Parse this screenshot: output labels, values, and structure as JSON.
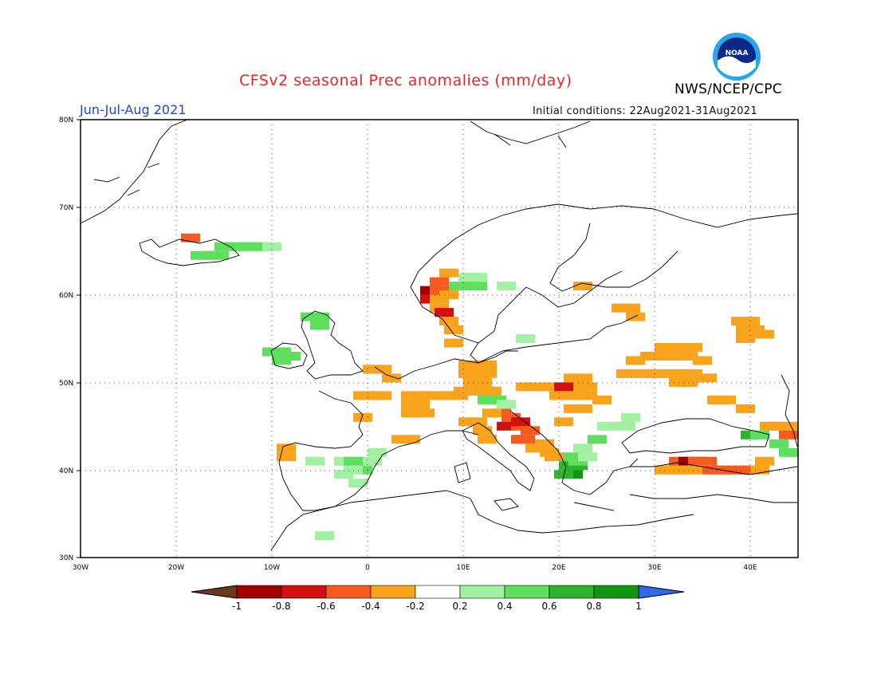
{
  "header": {
    "title": "CFSv2 seasonal Prec anomalies (mm/day)",
    "agency": "NWS/NCEP/CPC",
    "season": "Jun-Jul-Aug 2021",
    "initial_conditions": "Initial conditions: 22Aug2021-31Aug2021",
    "logo_text": "NOAA"
  },
  "map": {
    "lon_range": [
      -30,
      45
    ],
    "lat_range": [
      30,
      80
    ],
    "grid": "dotted",
    "lat_ticks": [
      "30N",
      "40N",
      "50N",
      "60N",
      "70N",
      "80N"
    ],
    "lon_ticks": [
      "30W",
      "20W",
      "10W",
      "0",
      "10E",
      "20E",
      "30E",
      "40E"
    ]
  },
  "colorbar": {
    "colors": [
      "#6b3a1e",
      "#a30000",
      "#d21010",
      "#f55a1e",
      "#f9a21c",
      "#ffffff",
      "#a2f0a2",
      "#5ee05e",
      "#2cb52c",
      "#129612",
      "#2f6ae8"
    ],
    "labels": [
      "-1",
      "-0.8",
      "-0.6",
      "-0.4",
      "-0.2",
      "0.2",
      "0.4",
      "0.6",
      "0.8",
      "1"
    ]
  },
  "anomaly_cells": [
    [
      1,
      -18.5,
      66.5,
      -0.4
    ],
    [
      0,
      -17.5,
      64.5,
      0.4
    ],
    [
      0,
      -16.5,
      64.5,
      0.4
    ],
    [
      0,
      -15.5,
      64.5,
      0.4
    ],
    [
      0,
      -15,
      65.5,
      0.4
    ],
    [
      0,
      -14,
      65.5,
      0.5
    ],
    [
      0,
      -13,
      65.5,
      0.5
    ],
    [
      0,
      -12,
      65.5,
      0.4
    ],
    [
      0,
      -11,
      65.5,
      0.4
    ],
    [
      0,
      -10,
      65.5,
      0.3
    ],
    [
      0,
      -10,
      53.5,
      0.4
    ],
    [
      0,
      -9,
      53.5,
      0.5
    ],
    [
      0,
      -8,
      53,
      0.4
    ],
    [
      0,
      -9,
      52.5,
      0.4
    ],
    [
      0,
      -6,
      57.5,
      0.4
    ],
    [
      0,
      -5,
      57.5,
      0.5
    ],
    [
      0,
      -5,
      56.5,
      0.4
    ],
    [
      2,
      6.5,
      60.5,
      -0.8
    ],
    [
      2,
      6.5,
      59.5,
      -0.7
    ],
    [
      1,
      7.5,
      61.5,
      -0.4
    ],
    [
      1,
      7.5,
      60.5,
      -0.4
    ],
    [
      1,
      7.5,
      59.5,
      -0.3
    ],
    [
      1,
      8.5,
      62.5,
      -0.3
    ],
    [
      1,
      8.5,
      60,
      -0.3
    ],
    [
      1,
      7.5,
      58.5,
      -0.3
    ],
    [
      2,
      8,
      58,
      -0.6
    ],
    [
      1,
      8.5,
      57,
      -0.3
    ],
    [
      1,
      9,
      56,
      -0.3
    ],
    [
      1,
      9,
      54.5,
      -0.3
    ],
    [
      0,
      9.5,
      61,
      0.4
    ],
    [
      0,
      10.5,
      61,
      0.4
    ],
    [
      0,
      11.5,
      61,
      0.4
    ],
    [
      0,
      10.5,
      62,
      0.3
    ],
    [
      0,
      11.5,
      62,
      0.3
    ],
    [
      0,
      14.5,
      61,
      0.3
    ],
    [
      0,
      16.5,
      55,
      0.3
    ],
    [
      1,
      22.5,
      61,
      -0.3
    ],
    [
      1,
      26.5,
      58.5,
      -0.3
    ],
    [
      1,
      27.5,
      58.5,
      -0.3
    ],
    [
      1,
      28,
      57.5,
      -0.3
    ],
    [
      1,
      10.5,
      52,
      -0.3
    ],
    [
      1,
      11.5,
      52,
      -0.3
    ],
    [
      1,
      12.5,
      52,
      -0.3
    ],
    [
      1,
      10.5,
      51,
      -0.3
    ],
    [
      1,
      11.5,
      51,
      -0.3
    ],
    [
      1,
      12.5,
      51,
      -0.3
    ],
    [
      1,
      11,
      50,
      -0.3
    ],
    [
      1,
      12,
      50,
      -0.3
    ],
    [
      1,
      10,
      49,
      -0.3
    ],
    [
      1,
      11,
      49,
      -0.3
    ],
    [
      1,
      12,
      49,
      -0.3
    ],
    [
      1,
      13,
      49,
      -0.3
    ],
    [
      1,
      0.5,
      51.5,
      -0.3
    ],
    [
      1,
      1.5,
      51.5,
      -0.3
    ],
    [
      1,
      2.5,
      50.5,
      -0.3
    ],
    [
      1,
      -0.5,
      48.5,
      -0.3
    ],
    [
      1,
      0.5,
      48.5,
      -0.3
    ],
    [
      1,
      1.5,
      48.5,
      -0.3
    ],
    [
      1,
      4.5,
      48.5,
      -0.3
    ],
    [
      1,
      5.5,
      48.5,
      -0.3
    ],
    [
      1,
      6.5,
      48.5,
      -0.3
    ],
    [
      1,
      4.5,
      47.5,
      -0.3
    ],
    [
      1,
      5.5,
      47.5,
      -0.3
    ],
    [
      1,
      4.5,
      46.5,
      -0.3
    ],
    [
      1,
      6,
      46.5,
      -0.3
    ],
    [
      1,
      8.5,
      48.5,
      -0.3
    ],
    [
      1,
      9.5,
      48.5,
      -0.3
    ],
    [
      1,
      -0.5,
      46,
      -0.3
    ],
    [
      1,
      3.5,
      43.5,
      -0.3
    ],
    [
      1,
      4.5,
      43.5,
      -0.3
    ],
    [
      1,
      10.5,
      45.5,
      -0.3
    ],
    [
      1,
      11.5,
      45.5,
      -0.3
    ],
    [
      1,
      12,
      44.5,
      -0.3
    ],
    [
      1,
      12.5,
      43.5,
      -0.3
    ],
    [
      2,
      14,
      46.5,
      -0.5
    ],
    [
      2,
      15,
      46,
      -0.5
    ],
    [
      2,
      14.5,
      45,
      -0.6
    ],
    [
      2,
      16,
      45,
      -0.5
    ],
    [
      3,
      16,
      45.5,
      -0.7
    ],
    [
      1,
      13,
      46.5,
      -0.3
    ],
    [
      1,
      17,
      44.5,
      -0.4
    ],
    [
      1,
      16,
      43.5,
      -0.5
    ],
    [
      2,
      16.5,
      43.5,
      -0.5
    ],
    [
      1,
      18.5,
      43,
      -0.3
    ],
    [
      1,
      17.5,
      42.5,
      -0.3
    ],
    [
      0,
      12.5,
      48,
      0.4
    ],
    [
      0,
      13.5,
      48,
      0.4
    ],
    [
      0,
      14.5,
      47.5,
      0.3
    ],
    [
      1,
      16.5,
      49.5,
      -0.3
    ],
    [
      1,
      17.5,
      49.5,
      -0.3
    ],
    [
      1,
      19,
      49.5,
      -0.3
    ],
    [
      1,
      21.5,
      50.5,
      -0.3
    ],
    [
      1,
      22.5,
      50.5,
      -0.3
    ],
    [
      1,
      21,
      49.5,
      -0.3
    ],
    [
      1,
      22,
      49.5,
      -0.3
    ],
    [
      1,
      23,
      49.5,
      -0.3
    ],
    [
      2,
      20.5,
      49.5,
      -0.6
    ],
    [
      1,
      20,
      48.5,
      -0.3
    ],
    [
      1,
      21,
      48.5,
      -0.3
    ],
    [
      1,
      23,
      48.5,
      -0.3
    ],
    [
      1,
      24.5,
      48,
      -0.3
    ],
    [
      1,
      22.5,
      47,
      -0.3
    ],
    [
      1,
      21.5,
      47,
      -0.3
    ],
    [
      1,
      20.5,
      45.5,
      -0.3
    ],
    [
      1,
      28,
      52.5,
      -0.3
    ],
    [
      1,
      29.5,
      53,
      -0.3
    ],
    [
      1,
      30.5,
      53,
      -0.3
    ],
    [
      1,
      31.5,
      53,
      -0.3
    ],
    [
      1,
      32.5,
      53,
      -0.3
    ],
    [
      1,
      33.5,
      53,
      -0.3
    ],
    [
      1,
      31,
      54,
      -0.3
    ],
    [
      1,
      32,
      54,
      -0.3
    ],
    [
      1,
      33,
      54,
      -0.3
    ],
    [
      1,
      34,
      54,
      -0.3
    ],
    [
      1,
      35,
      52.5,
      -0.3
    ],
    [
      1,
      27,
      51,
      -0.3
    ],
    [
      1,
      28,
      51,
      -0.3
    ],
    [
      1,
      29,
      51,
      -0.3
    ],
    [
      1,
      30,
      51,
      -0.3
    ],
    [
      1,
      31,
      51,
      -0.3
    ],
    [
      1,
      32,
      51,
      -0.3
    ],
    [
      1,
      33,
      51,
      -0.3
    ],
    [
      1,
      34,
      51,
      -0.3
    ],
    [
      1,
      32.5,
      50,
      -0.3
    ],
    [
      1,
      33.5,
      50,
      -0.3
    ],
    [
      1,
      35.5,
      50.5,
      -0.3
    ],
    [
      1,
      39,
      57,
      -0.3
    ],
    [
      1,
      40,
      57,
      -0.3
    ],
    [
      1,
      39.5,
      56,
      -0.3
    ],
    [
      1,
      40.5,
      56,
      -0.3
    ],
    [
      1,
      41.5,
      55.5,
      -0.3
    ],
    [
      1,
      39.5,
      55,
      -0.3
    ],
    [
      1,
      36.5,
      48,
      -0.3
    ],
    [
      1,
      37.5,
      48,
      -0.3
    ],
    [
      1,
      39.5,
      47,
      -0.3
    ],
    [
      1,
      42,
      45,
      -0.3
    ],
    [
      1,
      43,
      45,
      -0.3
    ],
    [
      1,
      44,
      45,
      -0.3
    ],
    [
      2,
      44,
      44,
      -0.5
    ],
    [
      0,
      40,
      44,
      0.6
    ],
    [
      0,
      41,
      44,
      0.5
    ],
    [
      0,
      43,
      43,
      0.5
    ],
    [
      0,
      44,
      42,
      0.4
    ],
    [
      1,
      31,
      40,
      -0.3
    ],
    [
      1,
      32,
      40,
      -0.3
    ],
    [
      2,
      32.5,
      41,
      -0.5
    ],
    [
      3,
      33.5,
      41,
      -0.8
    ],
    [
      2,
      34.5,
      41,
      -0.5
    ],
    [
      2,
      35.5,
      41,
      -0.5
    ],
    [
      1,
      33,
      40,
      -0.3
    ],
    [
      1,
      34,
      40,
      -0.3
    ],
    [
      2,
      36,
      40,
      -0.5
    ],
    [
      2,
      37,
      40,
      -0.5
    ],
    [
      2,
      38,
      40,
      -0.5
    ],
    [
      2,
      39,
      40,
      -0.5
    ],
    [
      2,
      40,
      40,
      -0.5
    ],
    [
      1,
      41,
      40,
      -0.3
    ],
    [
      1,
      41.5,
      41,
      -0.3
    ],
    [
      0,
      24,
      43.5,
      0.4
    ],
    [
      0,
      22.5,
      42.5,
      0.3
    ],
    [
      0,
      21.5,
      41.5,
      0.5
    ],
    [
      0,
      21,
      40.5,
      0.6
    ],
    [
      0,
      22,
      40.5,
      0.6
    ],
    [
      0,
      21.5,
      39.5,
      0.8
    ],
    [
      0,
      20.5,
      39.5,
      0.6
    ],
    [
      0,
      22,
      41,
      0.4
    ],
    [
      0,
      23,
      41.5,
      0.3
    ],
    [
      0,
      25,
      45,
      0.3
    ],
    [
      0,
      26,
      45,
      0.3
    ],
    [
      0,
      27,
      45,
      0.3
    ],
    [
      0,
      27.5,
      46,
      0.3
    ],
    [
      1,
      19,
      42,
      -0.3
    ],
    [
      1,
      19.5,
      41.5,
      -0.3
    ],
    [
      1,
      -8.5,
      42.5,
      -0.3
    ],
    [
      1,
      -8.5,
      41.5,
      -0.3
    ],
    [
      0,
      -5.5,
      41,
      0.3
    ],
    [
      0,
      -2.5,
      41,
      0.3
    ],
    [
      0,
      -1.5,
      41,
      0.4
    ],
    [
      0,
      -0.5,
      40,
      0.4
    ],
    [
      0,
      -1.5,
      40,
      0.3
    ],
    [
      0,
      0.5,
      41,
      0.3
    ],
    [
      0,
      1,
      42,
      0.3
    ],
    [
      0,
      -1,
      38.5,
      0.3
    ],
    [
      0,
      -2.5,
      39.5,
      0.3
    ],
    [
      0,
      -4.5,
      32.5,
      0.3
    ]
  ]
}
